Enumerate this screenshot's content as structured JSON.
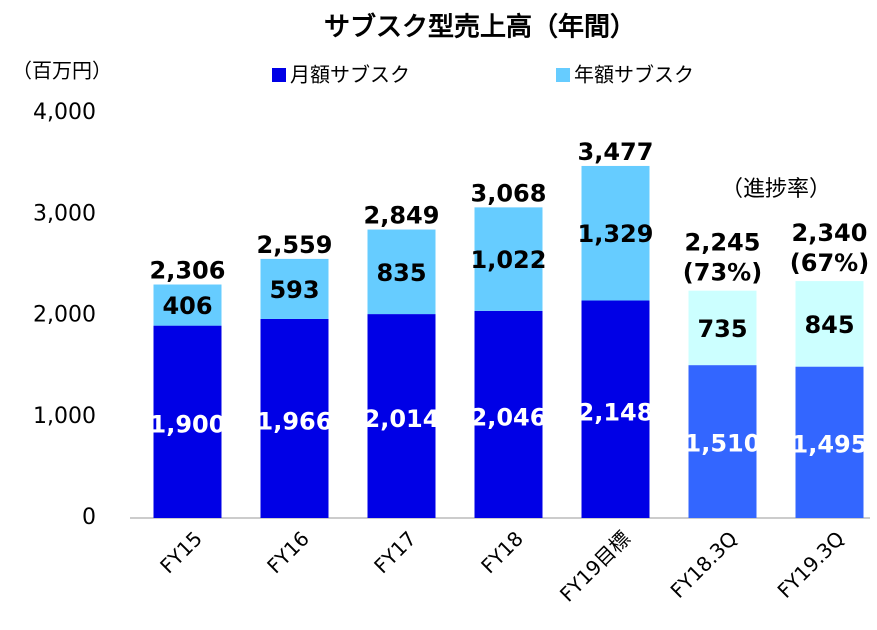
{
  "chart_data": {
    "type": "stacked_bar",
    "title": "サブスク型売上高（年間）",
    "y_axis_label": "（百万円）",
    "categories": [
      "FY15",
      "FY16",
      "FY17",
      "FY18",
      "FY19目標",
      "FY18.3Q",
      "FY19.3Q"
    ],
    "series": [
      {
        "name": "月額サブスク",
        "color": "#0000e6",
        "point_colors": [
          "#0000e6",
          "#0000e6",
          "#0000e6",
          "#0000e6",
          "#0000e6",
          "#3366ff",
          "#3366ff"
        ],
        "values": [
          1900,
          1966,
          2014,
          2046,
          2148,
          1510,
          1495
        ],
        "value_labels": [
          "1,900",
          "1,966",
          "2,014",
          "2,046",
          "2,148",
          "1,510",
          "1,495"
        ]
      },
      {
        "name": "年額サブスク",
        "color": "#66ccff",
        "point_colors": [
          "#66ccff",
          "#66ccff",
          "#66ccff",
          "#66ccff",
          "#66ccff",
          "#ccffff",
          "#ccffff"
        ],
        "values": [
          406,
          593,
          835,
          1022,
          1329,
          735,
          845
        ],
        "value_labels": [
          "406",
          "593",
          "835",
          "1,022",
          "1,329",
          "735",
          "845"
        ]
      }
    ],
    "totals": [
      2306,
      2559,
      2849,
      3068,
      3477,
      2245,
      2340
    ],
    "total_labels": [
      "2,306",
      "2,559",
      "2,849",
      "3,068",
      "3,477",
      "2,245",
      "2,340"
    ],
    "progress": [
      null,
      null,
      null,
      null,
      null,
      73,
      67
    ],
    "progress_labels": [
      null,
      null,
      null,
      null,
      null,
      "(73%)",
      "(67%)"
    ],
    "annotation": "（進捗率）",
    "ylim": [
      0,
      4000
    ],
    "yticks": [
      0,
      {
        "value": 1000,
        "label": "1,000"
      },
      {
        "value": 2000,
        "label": "2,000"
      },
      {
        "value": 3000,
        "label": "3,000"
      },
      {
        "value": 4000,
        "label": "4,000"
      }
    ],
    "grid": false,
    "legend": "top"
  }
}
